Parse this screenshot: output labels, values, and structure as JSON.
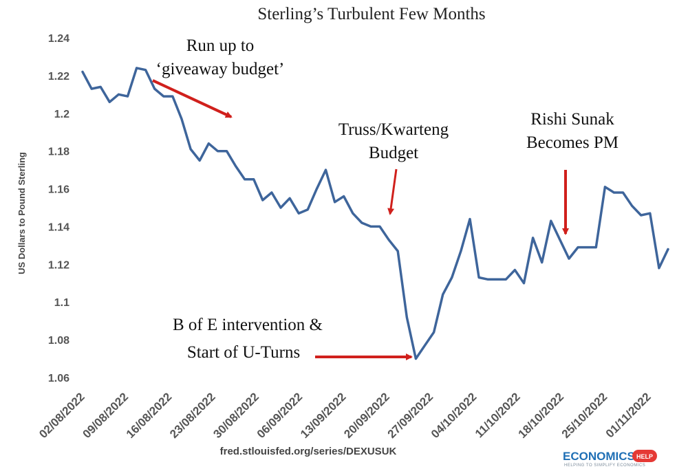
{
  "chart_data": {
    "type": "line",
    "title": "Sterling’s Turbulent Few Months",
    "xlabel": "",
    "ylabel": "US Dollars to Pound Sterling",
    "ylim": [
      1.06,
      1.24
    ],
    "yticks": [
      "1.06",
      "1.08",
      "1.1",
      "1.12",
      "1.14",
      "1.16",
      "1.18",
      "1.2",
      "1.22",
      "1.24"
    ],
    "xticks": [
      "02/08/2022",
      "09/08/2022",
      "16/08/2022",
      "23/08/2022",
      "30/08/2022",
      "06/09/2022",
      "13/09/2022",
      "20/09/2022",
      "27/09/2022",
      "04/10/2022",
      "11/10/2022",
      "18/10/2022",
      "25/10/2022",
      "01/11/2022"
    ],
    "grid": false,
    "series": [
      {
        "name": "DEXUSUK",
        "color": "#3e659b",
        "values": [
          1.222,
          1.213,
          1.214,
          1.206,
          1.21,
          1.209,
          1.224,
          1.223,
          1.213,
          1.209,
          1.209,
          1.197,
          1.181,
          1.175,
          1.184,
          1.18,
          1.18,
          1.172,
          1.165,
          1.165,
          1.154,
          1.158,
          1.15,
          1.155,
          1.147,
          1.149,
          1.16,
          1.17,
          1.153,
          1.156,
          1.147,
          1.142,
          1.14,
          1.14,
          1.133,
          1.127,
          1.092,
          1.07,
          1.077,
          1.084,
          1.104,
          1.113,
          1.127,
          1.144,
          1.113,
          1.112,
          1.112,
          1.112,
          1.117,
          1.11,
          1.134,
          1.121,
          1.143,
          1.133,
          1.123,
          1.129,
          1.129,
          1.129,
          1.161,
          1.158,
          1.158,
          1.151,
          1.146,
          1.147,
          1.118,
          1.128
        ]
      }
    ],
    "annotations": [
      {
        "lines": [
          "Run up to",
          "‘giveaway budget’"
        ]
      },
      {
        "lines": [
          "Truss/Kwarteng",
          "Budget"
        ]
      },
      {
        "lines": [
          "Rishi Sunak",
          "Becomes PM"
        ]
      },
      {
        "lines": [
          "B of E intervention &",
          "Start of U-Turns"
        ]
      }
    ],
    "arrow_color": "#d0201c"
  },
  "footer": {
    "source": "fred.stlouisfed.org/series/DEXUSUK",
    "logo_text": "ECONOMICS",
    "logo_badge": "HELP",
    "logo_tagline": "HELPING TO SIMPLIFY ECONOMICS"
  }
}
